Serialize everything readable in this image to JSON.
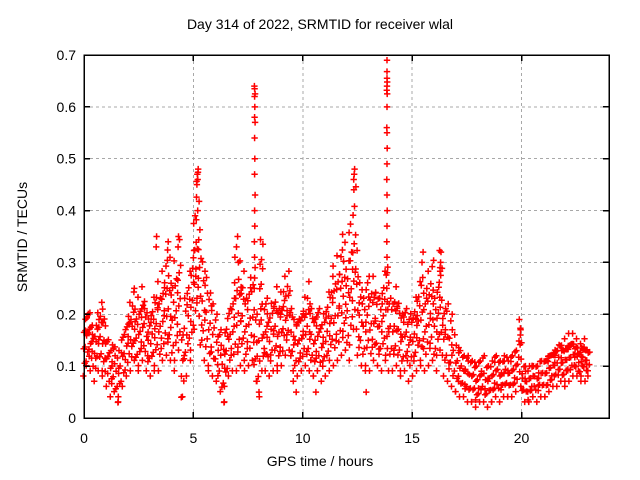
{
  "chart_data": {
    "type": "scatter",
    "title": "Day 314 of 2022, SRMTID for receiver wlal",
    "xlabel": "GPS time / hours",
    "ylabel": "SRMTID / TECUs",
    "xlim": [
      0,
      24
    ],
    "ylim": [
      0,
      0.7
    ],
    "xticks": {
      "values": [
        0,
        5,
        10,
        15,
        20
      ],
      "labels": [
        "0",
        "5",
        "10",
        "15",
        "20"
      ]
    },
    "yticks": {
      "values": [
        0,
        0.1,
        0.2,
        0.3,
        0.4,
        0.5,
        0.6,
        0.7
      ],
      "labels": [
        "0",
        "0.1",
        "0.2",
        "0.3",
        "0.4",
        "0.5",
        "0.6",
        "0.7"
      ]
    },
    "grid": true,
    "legend": "none",
    "marker": "plus",
    "series_name": "SRMTID",
    "colors": {
      "points": "#ff0000",
      "grid": "#a8a8a8",
      "frame": "#000000",
      "background": "#ffffff",
      "text": "#000000"
    },
    "clusters": [
      [
        0.05,
        0.09,
        0.19,
        9
      ],
      [
        0.15,
        0.11,
        0.21,
        8
      ],
      [
        0.3,
        0.1,
        0.2,
        9
      ],
      [
        0.45,
        0.08,
        0.17,
        8
      ],
      [
        0.6,
        0.1,
        0.2,
        9
      ],
      [
        0.75,
        0.1,
        0.22,
        9
      ],
      [
        0.9,
        0.09,
        0.2,
        8
      ],
      [
        1.05,
        0.07,
        0.16,
        8
      ],
      [
        1.2,
        0.05,
        0.13,
        7
      ],
      [
        1.35,
        0.06,
        0.15,
        8
      ],
      [
        1.5,
        0.04,
        0.12,
        7
      ],
      [
        1.65,
        0.05,
        0.13,
        7
      ],
      [
        1.8,
        0.07,
        0.17,
        8
      ],
      [
        1.95,
        0.09,
        0.19,
        8
      ],
      [
        2.1,
        0.1,
        0.22,
        9
      ],
      [
        2.25,
        0.12,
        0.24,
        9
      ],
      [
        2.4,
        0.1,
        0.2,
        8
      ],
      [
        2.55,
        0.11,
        0.23,
        9
      ],
      [
        2.7,
        0.12,
        0.25,
        9
      ],
      [
        2.85,
        0.1,
        0.22,
        8
      ],
      [
        3.0,
        0.09,
        0.2,
        8
      ],
      [
        3.15,
        0.1,
        0.23,
        9
      ],
      [
        3.3,
        0.11,
        0.26,
        9
      ],
      [
        3.45,
        0.1,
        0.24,
        8
      ],
      [
        3.6,
        0.12,
        0.28,
        9
      ],
      [
        3.75,
        0.13,
        0.31,
        10
      ],
      [
        3.9,
        0.12,
        0.33,
        10
      ],
      [
        4.05,
        0.1,
        0.26,
        8
      ],
      [
        4.2,
        0.12,
        0.3,
        9
      ],
      [
        4.35,
        0.14,
        0.35,
        10
      ],
      [
        4.5,
        0.05,
        0.16,
        7
      ],
      [
        4.65,
        0.09,
        0.24,
        8
      ],
      [
        4.8,
        0.12,
        0.28,
        9
      ],
      [
        4.95,
        0.14,
        0.32,
        9
      ],
      [
        5.08,
        0.18,
        0.42,
        11
      ],
      [
        5.18,
        0.24,
        0.48,
        10
      ],
      [
        5.3,
        0.15,
        0.36,
        9
      ],
      [
        5.45,
        0.12,
        0.31,
        8
      ],
      [
        5.6,
        0.11,
        0.28,
        8
      ],
      [
        5.75,
        0.1,
        0.25,
        8
      ],
      [
        5.9,
        0.09,
        0.22,
        7
      ],
      [
        6.05,
        0.08,
        0.2,
        7
      ],
      [
        6.2,
        0.06,
        0.17,
        7
      ],
      [
        6.35,
        0.04,
        0.14,
        7
      ],
      [
        6.5,
        0.07,
        0.18,
        8
      ],
      [
        6.65,
        0.09,
        0.22,
        8
      ],
      [
        6.8,
        0.1,
        0.24,
        8
      ],
      [
        6.95,
        0.1,
        0.27,
        8
      ],
      [
        7.1,
        0.11,
        0.3,
        9
      ],
      [
        7.25,
        0.12,
        0.28,
        9
      ],
      [
        7.4,
        0.1,
        0.24,
        8
      ],
      [
        7.55,
        0.11,
        0.26,
        8
      ],
      [
        7.7,
        0.12,
        0.28,
        8
      ],
      [
        7.85,
        0.08,
        0.2,
        7
      ],
      [
        7.95,
        0.05,
        0.14,
        6
      ],
      [
        8.1,
        0.19,
        0.35,
        10
      ],
      [
        8.18,
        0.1,
        0.18,
        6
      ],
      [
        8.3,
        0.1,
        0.24,
        8
      ],
      [
        8.45,
        0.09,
        0.21,
        8
      ],
      [
        8.6,
        0.1,
        0.23,
        8
      ],
      [
        8.75,
        0.11,
        0.25,
        9
      ],
      [
        8.9,
        0.1,
        0.22,
        8
      ],
      [
        9.05,
        0.11,
        0.24,
        9
      ],
      [
        9.2,
        0.13,
        0.27,
        9
      ],
      [
        9.35,
        0.14,
        0.28,
        9
      ],
      [
        9.5,
        0.1,
        0.22,
        8
      ],
      [
        9.65,
        0.08,
        0.19,
        7
      ],
      [
        9.8,
        0.09,
        0.2,
        8
      ],
      [
        9.95,
        0.1,
        0.21,
        8
      ],
      [
        10.1,
        0.11,
        0.23,
        9
      ],
      [
        10.25,
        0.1,
        0.26,
        9
      ],
      [
        10.4,
        0.09,
        0.22,
        8
      ],
      [
        10.55,
        0.09,
        0.2,
        8
      ],
      [
        10.7,
        0.1,
        0.22,
        8
      ],
      [
        10.85,
        0.08,
        0.18,
        7
      ],
      [
        11.0,
        0.09,
        0.21,
        8
      ],
      [
        11.15,
        0.1,
        0.24,
        9
      ],
      [
        11.3,
        0.12,
        0.27,
        9
      ],
      [
        11.45,
        0.11,
        0.29,
        9
      ],
      [
        11.6,
        0.12,
        0.31,
        9
      ],
      [
        11.75,
        0.13,
        0.33,
        10
      ],
      [
        11.9,
        0.14,
        0.36,
        10
      ],
      [
        12.05,
        0.12,
        0.3,
        9
      ],
      [
        12.2,
        0.15,
        0.38,
        10
      ],
      [
        12.35,
        0.18,
        0.44,
        11
      ],
      [
        12.5,
        0.13,
        0.32,
        9
      ],
      [
        12.65,
        0.11,
        0.27,
        8
      ],
      [
        12.8,
        0.1,
        0.24,
        8
      ],
      [
        12.95,
        0.11,
        0.27,
        8
      ],
      [
        13.1,
        0.1,
        0.27,
        9
      ],
      [
        13.25,
        0.12,
        0.27,
        9
      ],
      [
        13.4,
        0.11,
        0.25,
        8
      ],
      [
        13.55,
        0.1,
        0.24,
        8
      ],
      [
        13.7,
        0.12,
        0.28,
        9
      ],
      [
        13.85,
        0.13,
        0.3,
        8
      ],
      [
        13.95,
        0.1,
        0.22,
        7
      ],
      [
        14.1,
        0.1,
        0.24,
        8
      ],
      [
        14.25,
        0.11,
        0.25,
        9
      ],
      [
        14.4,
        0.1,
        0.23,
        8
      ],
      [
        14.55,
        0.09,
        0.21,
        8
      ],
      [
        14.7,
        0.1,
        0.22,
        8
      ],
      [
        14.85,
        0.08,
        0.19,
        7
      ],
      [
        15.0,
        0.09,
        0.21,
        8
      ],
      [
        15.15,
        0.1,
        0.23,
        9
      ],
      [
        15.3,
        0.12,
        0.26,
        9
      ],
      [
        15.45,
        0.11,
        0.28,
        8
      ],
      [
        15.6,
        0.1,
        0.24,
        8
      ],
      [
        15.75,
        0.11,
        0.28,
        9
      ],
      [
        15.9,
        0.12,
        0.31,
        10
      ],
      [
        16.05,
        0.1,
        0.24,
        8
      ],
      [
        16.2,
        0.13,
        0.28,
        9
      ],
      [
        16.32,
        0.14,
        0.32,
        9
      ],
      [
        16.45,
        0.09,
        0.22,
        8
      ],
      [
        16.6,
        0.08,
        0.22,
        7
      ],
      [
        16.75,
        0.07,
        0.2,
        7
      ],
      [
        16.9,
        0.06,
        0.17,
        7
      ],
      [
        17.05,
        0.06,
        0.14,
        7
      ],
      [
        17.2,
        0.05,
        0.13,
        7
      ],
      [
        17.35,
        0.05,
        0.12,
        7
      ],
      [
        17.5,
        0.04,
        0.12,
        7
      ],
      [
        17.65,
        0.04,
        0.11,
        7
      ],
      [
        17.8,
        0.04,
        0.11,
        7
      ],
      [
        17.95,
        0.03,
        0.1,
        7
      ],
      [
        18.1,
        0.04,
        0.11,
        7
      ],
      [
        18.25,
        0.04,
        0.12,
        7
      ],
      [
        18.4,
        0.03,
        0.1,
        7
      ],
      [
        18.55,
        0.04,
        0.1,
        7
      ],
      [
        18.7,
        0.04,
        0.11,
        7
      ],
      [
        18.85,
        0.05,
        0.12,
        7
      ],
      [
        19.0,
        0.04,
        0.11,
        7
      ],
      [
        19.15,
        0.05,
        0.11,
        7
      ],
      [
        19.3,
        0.05,
        0.12,
        7
      ],
      [
        19.45,
        0.05,
        0.11,
        7
      ],
      [
        19.6,
        0.05,
        0.12,
        7
      ],
      [
        19.75,
        0.06,
        0.13,
        7
      ],
      [
        19.95,
        0.07,
        0.17,
        9
      ],
      [
        20.1,
        0.04,
        0.1,
        7
      ],
      [
        20.25,
        0.04,
        0.09,
        7
      ],
      [
        20.4,
        0.04,
        0.1,
        7
      ],
      [
        20.55,
        0.05,
        0.1,
        7
      ],
      [
        20.7,
        0.04,
        0.1,
        7
      ],
      [
        20.85,
        0.05,
        0.11,
        7
      ],
      [
        21.0,
        0.05,
        0.11,
        7
      ],
      [
        21.15,
        0.05,
        0.12,
        8
      ],
      [
        21.3,
        0.06,
        0.13,
        8
      ],
      [
        21.45,
        0.07,
        0.13,
        8
      ],
      [
        21.6,
        0.07,
        0.14,
        8
      ],
      [
        21.75,
        0.08,
        0.15,
        8
      ],
      [
        21.9,
        0.07,
        0.14,
        8
      ],
      [
        22.05,
        0.08,
        0.15,
        9
      ],
      [
        22.2,
        0.08,
        0.16,
        9
      ],
      [
        22.35,
        0.09,
        0.16,
        9
      ],
      [
        22.5,
        0.09,
        0.15,
        9
      ],
      [
        22.65,
        0.08,
        0.14,
        9
      ],
      [
        22.8,
        0.09,
        0.15,
        9
      ],
      [
        22.95,
        0.08,
        0.14,
        8
      ],
      [
        23.05,
        0.09,
        0.13,
        5
      ]
    ],
    "points": [
      [
        7.78,
        0.25
      ],
      [
        7.8,
        0.27
      ],
      [
        7.82,
        0.29
      ],
      [
        7.8,
        0.31
      ],
      [
        7.79,
        0.34
      ],
      [
        7.81,
        0.37
      ],
      [
        7.8,
        0.4
      ],
      [
        7.82,
        0.43
      ],
      [
        7.8,
        0.47
      ],
      [
        7.81,
        0.5
      ],
      [
        7.8,
        0.54
      ],
      [
        7.82,
        0.57
      ],
      [
        7.8,
        0.58
      ],
      [
        7.81,
        0.6
      ],
      [
        7.8,
        0.62
      ],
      [
        7.82,
        0.625
      ],
      [
        7.8,
        0.635
      ],
      [
        7.79,
        0.64
      ],
      [
        13.84,
        0.25
      ],
      [
        13.86,
        0.28
      ],
      [
        13.85,
        0.31
      ],
      [
        13.84,
        0.34
      ],
      [
        13.85,
        0.37
      ],
      [
        13.86,
        0.4
      ],
      [
        13.85,
        0.43
      ],
      [
        13.84,
        0.46
      ],
      [
        13.85,
        0.49
      ],
      [
        13.86,
        0.52
      ],
      [
        13.85,
        0.55
      ],
      [
        13.84,
        0.56
      ],
      [
        13.85,
        0.6
      ],
      [
        13.86,
        0.625
      ],
      [
        13.84,
        0.632
      ],
      [
        13.85,
        0.64
      ],
      [
        13.86,
        0.648
      ],
      [
        13.85,
        0.655
      ],
      [
        13.85,
        0.668
      ],
      [
        13.85,
        0.69
      ],
      [
        12.33,
        0.46
      ],
      [
        12.35,
        0.47
      ],
      [
        12.37,
        0.48
      ],
      [
        12.34,
        0.44
      ],
      [
        5.16,
        0.45
      ],
      [
        5.2,
        0.46
      ],
      [
        5.18,
        0.47
      ],
      [
        5.22,
        0.48
      ],
      [
        4.3,
        0.33
      ],
      [
        4.32,
        0.35
      ],
      [
        3.3,
        0.33
      ],
      [
        3.32,
        0.35
      ],
      [
        6.9,
        0.31
      ],
      [
        6.97,
        0.33
      ],
      [
        7.02,
        0.35
      ],
      [
        7.06,
        0.3
      ],
      [
        16.3,
        0.3
      ],
      [
        16.32,
        0.32
      ],
      [
        16.28,
        0.29
      ],
      [
        15.45,
        0.3
      ],
      [
        15.5,
        0.32
      ],
      [
        19.9,
        0.19
      ],
      [
        19.95,
        0.16
      ],
      [
        19.96,
        0.17
      ],
      [
        0.85,
        0.21
      ],
      [
        2.3,
        0.25
      ],
      [
        3.85,
        0.34
      ],
      [
        1.55,
        0.03
      ],
      [
        4.45,
        0.04
      ],
      [
        6.4,
        0.03
      ],
      [
        8.0,
        0.05
      ],
      [
        12.9,
        0.05
      ],
      [
        17.9,
        0.035
      ],
      [
        20.3,
        0.035
      ],
      [
        10.6,
        0.05
      ],
      [
        9.7,
        0.05
      ]
    ]
  }
}
